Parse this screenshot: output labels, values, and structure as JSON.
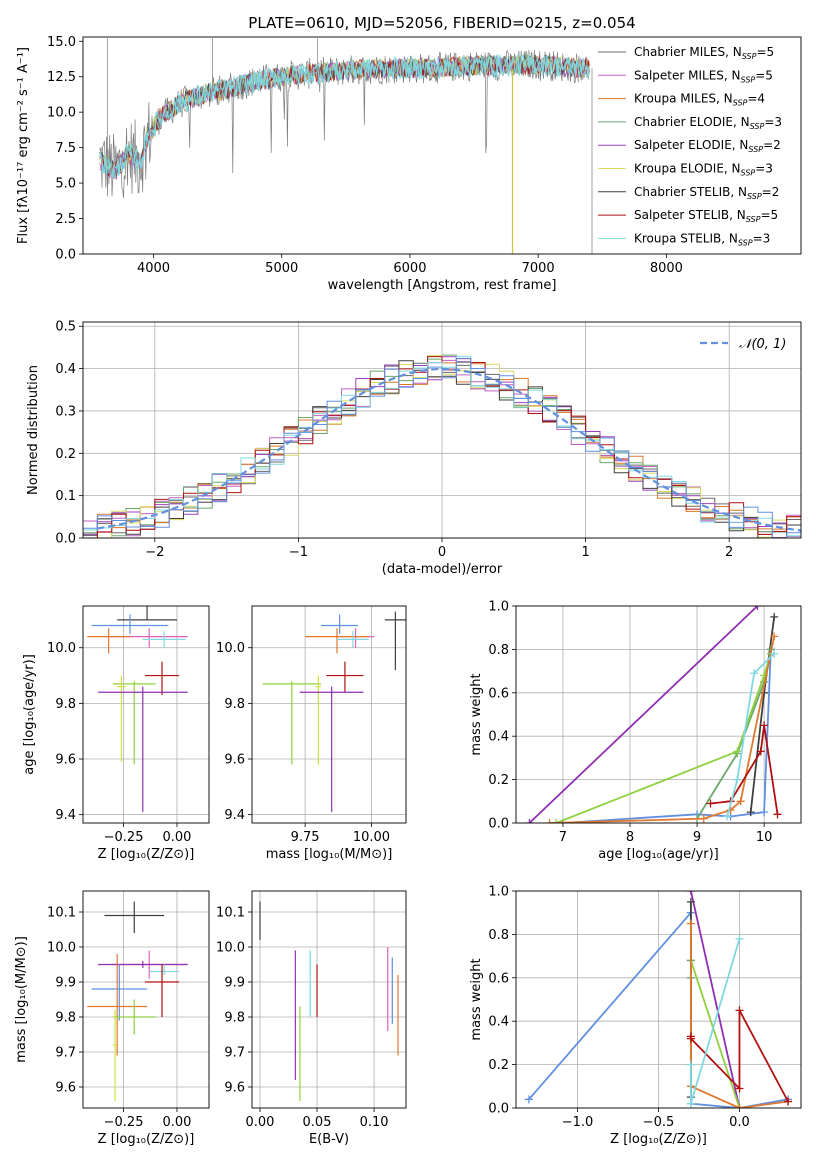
{
  "colors": {
    "grid": "#b0b0b0",
    "palette": [
      "#6a6a6a",
      "#c060c0",
      "#d97a2a",
      "#6aa86a",
      "#a040c0",
      "#d8d860",
      "#404040",
      "#b01010",
      "#80d8e0"
    ],
    "blue": "#6090e0",
    "orange": "#e07830",
    "green": "#90d040",
    "purple": "#9030b0",
    "dark": "#404040",
    "red": "#b01010",
    "cyan": "#80d8e0",
    "pink": "#e060c0",
    "yellow": "#d0e040"
  },
  "chart_data": [
    {
      "id": "spectrum",
      "type": "line",
      "title": "PLATE=0610, MJD=52056, FIBERID=0215, z=0.054",
      "xlabel": "wavelength [Angstrom, rest frame]",
      "ylabel": "Flux [fλ10⁻¹⁷ erg cm⁻² s⁻¹ A⁻¹]",
      "xlim": [
        3450,
        9050
      ],
      "ylim": [
        0,
        15.3
      ],
      "xticks": [
        4000,
        5000,
        6000,
        7000,
        8000
      ],
      "yticks": [
        0.0,
        2.5,
        5.0,
        7.5,
        10.0,
        12.5,
        15.0
      ],
      "xtick_labels": [
        "4000",
        "5000",
        "6000",
        "7000",
        "8000"
      ],
      "ytick_labels": [
        "0.0",
        "2.5",
        "5.0",
        "7.5",
        "10.0",
        "12.5",
        "15.0"
      ],
      "continuum": {
        "x": [
          3580,
          3700,
          3800,
          3900,
          3950,
          4050,
          4200,
          4400,
          4600,
          4800,
          5000,
          5300,
          5600,
          5900,
          6200,
          6500,
          6800,
          7000,
          7200,
          7400
        ],
        "y": [
          6.6,
          5.8,
          7.1,
          6.5,
          8.2,
          9.6,
          10.6,
          11.3,
          11.7,
          12.2,
          12.5,
          12.8,
          13.0,
          13.1,
          13.1,
          13.3,
          13.3,
          13.4,
          13.2,
          13.1
        ]
      },
      "legend": [
        {
          "label": "Chabrier MILES, N",
          "sub": "SSP",
          "tail": "=5",
          "color": "#6a6a6a"
        },
        {
          "label": "Salpeter MILES, N",
          "sub": "SSP",
          "tail": "=5",
          "color": "#c060c0"
        },
        {
          "label": "Kroupa MILES, N",
          "sub": "SSP",
          "tail": "=4",
          "color": "#d97a2a"
        },
        {
          "label": "Chabrier ELODIE, N",
          "sub": "SSP",
          "tail": "=3",
          "color": "#6aa86a"
        },
        {
          "label": "Salpeter ELODIE, N",
          "sub": "SSP",
          "tail": "=2",
          "color": "#a040c0"
        },
        {
          "label": "Kroupa ELODIE, N",
          "sub": "SSP",
          "tail": "=3",
          "color": "#d8d860"
        },
        {
          "label": "Chabrier STELIB, N",
          "sub": "SSP",
          "tail": "=2",
          "color": "#404040"
        },
        {
          "label": "Salpeter STELIB, N",
          "sub": "SSP",
          "tail": "=5",
          "color": "#b01010"
        },
        {
          "label": "Kroupa STELIB, N",
          "sub": "SSP",
          "tail": "=3",
          "color": "#80d8e0"
        }
      ]
    },
    {
      "id": "residuals",
      "type": "line",
      "xlabel": "(data-model)/error",
      "ylabel": "Normed distribution",
      "xlim": [
        -2.5,
        2.5
      ],
      "ylim": [
        0,
        0.51
      ],
      "xticks": [
        -2,
        -1,
        0,
        1,
        2
      ],
      "yticks": [
        0.0,
        0.1,
        0.2,
        0.3,
        0.4,
        0.5
      ],
      "xtick_labels": [
        "−2",
        "−1",
        "0",
        "1",
        "2"
      ],
      "ytick_labels": [
        "0.0",
        "0.1",
        "0.2",
        "0.3",
        "0.4",
        "0.5"
      ],
      "legend_label": "𝒩(0, 1)",
      "series_bin_width": 0.1
    },
    {
      "id": "age_vs_Z",
      "type": "scatter",
      "xlabel": "Z [log₁₀(Z/Z⊙)]",
      "ylabel": "age  [log₁₀(age/yr)]",
      "xlim": [
        -0.44,
        0.15
      ],
      "ylim": [
        9.37,
        10.15
      ],
      "xticks": [
        -0.25,
        0.0
      ],
      "yticks": [
        9.4,
        9.6,
        9.8,
        10.0
      ],
      "xtick_labels": [
        "−0.25",
        "0.00"
      ],
      "ytick_labels": [
        "9.4",
        "9.6",
        "9.8",
        "10.0"
      ],
      "points": [
        {
          "x": -0.14,
          "y": 10.1,
          "xerr": 0.14,
          "yerr": [
            0.0,
            0.05
          ],
          "color": "#404040"
        },
        {
          "x": -0.22,
          "y": 10.08,
          "xerr": 0.18,
          "yerr": [
            0.03,
            0.04
          ],
          "color": "#6090e0"
        },
        {
          "x": -0.13,
          "y": 10.04,
          "xerr": 0.18,
          "yerr": [
            0.04,
            0.03
          ],
          "color": "#e060c0"
        },
        {
          "x": -0.32,
          "y": 10.04,
          "xerr": 0.1,
          "yerr": [
            0.06,
            0.03
          ],
          "color": "#e07830"
        },
        {
          "x": -0.06,
          "y": 10.03,
          "xerr": 0.1,
          "yerr": [
            0.03,
            0.03
          ],
          "color": "#80d8e0"
        },
        {
          "x": -0.07,
          "y": 9.9,
          "xerr": 0.08,
          "yerr": [
            0.07,
            0.05
          ],
          "color": "#b01010"
        },
        {
          "x": -0.2,
          "y": 9.87,
          "xerr": 0.1,
          "yerr": [
            0.29,
            0.01
          ],
          "color": "#90d040"
        },
        {
          "x": -0.26,
          "y": 9.86,
          "xerr": 0.02,
          "yerr": [
            0.27,
            0.04
          ],
          "color": "#d0e040"
        },
        {
          "x": -0.16,
          "y": 9.84,
          "xerr": 0.21,
          "yerr": [
            0.43,
            0.02
          ],
          "color": "#9030b0"
        }
      ]
    },
    {
      "id": "age_vs_mass",
      "type": "scatter",
      "xlabel": "mass [log₁₀(M/M⊙)]",
      "xlim": [
        9.55,
        10.13
      ],
      "ylim": [
        9.37,
        10.15
      ],
      "xticks": [
        9.75,
        10.0
      ],
      "yticks": [
        9.4,
        9.6,
        9.8,
        10.0
      ],
      "xtick_labels": [
        "9.75",
        "10.00"
      ],
      "ytick_labels": [
        "9.4",
        "9.6",
        "9.8",
        "10.0"
      ],
      "points": [
        {
          "x": 10.09,
          "y": 10.1,
          "xerr": 0.04,
          "yerr": [
            0.18,
            0.03
          ],
          "color": "#404040"
        },
        {
          "x": 9.88,
          "y": 10.08,
          "xerr": 0.07,
          "yerr": [
            0.03,
            0.04
          ],
          "color": "#6090e0"
        },
        {
          "x": 9.94,
          "y": 10.04,
          "xerr": 0.07,
          "yerr": [
            0.04,
            0.03
          ],
          "color": "#e060c0"
        },
        {
          "x": 9.87,
          "y": 10.04,
          "xerr": 0.12,
          "yerr": [
            0.06,
            0.03
          ],
          "color": "#e07830"
        },
        {
          "x": 9.93,
          "y": 10.03,
          "xerr": 0.06,
          "yerr": [
            0.03,
            0.03
          ],
          "color": "#80d8e0"
        },
        {
          "x": 9.9,
          "y": 9.9,
          "xerr": 0.07,
          "yerr": [
            0.06,
            0.05
          ],
          "color": "#b01010"
        },
        {
          "x": 9.7,
          "y": 9.87,
          "xerr": 0.11,
          "yerr": [
            0.29,
            0.01
          ],
          "color": "#90d040"
        },
        {
          "x": 9.8,
          "y": 9.86,
          "xerr": 0.01,
          "yerr": [
            0.28,
            0.04
          ],
          "color": "#d0e040"
        },
        {
          "x": 9.85,
          "y": 9.84,
          "xerr": 0.12,
          "yerr": [
            0.43,
            0.02
          ],
          "color": "#9030b0"
        }
      ]
    },
    {
      "id": "massweight_vs_age",
      "type": "line",
      "xlabel": "age  [log₁₀(age/yr)]",
      "ylabel": "mass weight",
      "xlim": [
        6.3,
        10.55
      ],
      "ylim": [
        0,
        1.0
      ],
      "xticks": [
        7,
        8,
        9,
        10
      ],
      "yticks": [
        0.0,
        0.2,
        0.4,
        0.6,
        0.8,
        1.0
      ],
      "xtick_labels": [
        "7",
        "8",
        "9",
        "10"
      ],
      "ytick_labels": [
        "0.0",
        "0.2",
        "0.4",
        "0.6",
        "0.8",
        "1.0"
      ],
      "series": [
        {
          "color": "#9030b0",
          "x": [
            6.5,
            9.9
          ],
          "y": [
            0.0,
            1.0
          ]
        },
        {
          "color": "#6090e0",
          "x": [
            7.0,
            9.0,
            9.5,
            10.0,
            10.1
          ],
          "y": [
            0.0,
            0.04,
            0.03,
            0.05,
            0.8
          ]
        },
        {
          "color": "#404040",
          "x": [
            9.8,
            10.0,
            10.15
          ],
          "y": [
            0.05,
            0.6,
            0.95
          ]
        },
        {
          "color": "#6aa86a",
          "x": [
            9.0,
            9.6,
            10.0,
            10.1
          ],
          "y": [
            0.02,
            0.32,
            0.65,
            0.8
          ]
        },
        {
          "color": "#90d040",
          "x": [
            6.9,
            9.6,
            10.0,
            10.1
          ],
          "y": [
            0.0,
            0.33,
            0.68,
            0.78
          ]
        },
        {
          "color": "#e07830",
          "x": [
            6.8,
            9.1,
            9.5,
            9.65,
            10.15
          ],
          "y": [
            0.0,
            0.02,
            0.06,
            0.1,
            0.86
          ]
        },
        {
          "color": "#b01010",
          "x": [
            9.2,
            9.5,
            9.95,
            10.0,
            10.2
          ],
          "y": [
            0.09,
            0.1,
            0.33,
            0.45,
            0.04
          ]
        },
        {
          "color": "#80d8e0",
          "x": [
            9.45,
            9.6,
            9.85,
            10.15
          ],
          "y": [
            0.03,
            0.2,
            0.69,
            0.78
          ]
        }
      ]
    },
    {
      "id": "mass_vs_Z",
      "type": "scatter",
      "xlabel": "Z [log₁₀(Z/Z⊙)]",
      "ylabel": "mass [log₁₀(M/M⊙)]",
      "xlim": [
        -0.44,
        0.15
      ],
      "ylim": [
        9.54,
        10.16
      ],
      "xticks": [
        -0.25,
        0.0
      ],
      "yticks": [
        9.6,
        9.7,
        9.8,
        9.9,
        10.0,
        10.1
      ],
      "xtick_labels": [
        "−0.25",
        "0.00"
      ],
      "ytick_labels": [
        "9.6",
        "9.7",
        "9.8",
        "9.9",
        "10.0",
        "10.1"
      ],
      "points": [
        {
          "x": -0.2,
          "y": 10.09,
          "xerr": 0.14,
          "yerr": [
            0.05,
            0.04
          ],
          "color": "#404040"
        },
        {
          "x": -0.13,
          "y": 9.95,
          "xerr": 0.18,
          "yerr": [
            0.04,
            0.04
          ],
          "color": "#e060c0"
        },
        {
          "x": -0.16,
          "y": 9.95,
          "xerr": 0.21,
          "yerr": [
            0.01,
            0.01
          ],
          "color": "#9030b0"
        },
        {
          "x": -0.06,
          "y": 9.93,
          "xerr": 0.07,
          "yerr": [
            0.01,
            0.02
          ],
          "color": "#80d8e0"
        },
        {
          "x": -0.07,
          "y": 9.9,
          "xerr": 0.08,
          "yerr": [
            0.1,
            0.05
          ],
          "color": "#b01010"
        },
        {
          "x": -0.27,
          "y": 9.88,
          "xerr": 0.13,
          "yerr": [
            0.09,
            0.07
          ],
          "color": "#6090e0"
        },
        {
          "x": -0.28,
          "y": 9.83,
          "xerr": 0.14,
          "yerr": [
            0.14,
            0.15
          ],
          "color": "#e07830"
        },
        {
          "x": -0.2,
          "y": 9.8,
          "xerr": 0.1,
          "yerr": [
            0.05,
            0.05
          ],
          "color": "#90d040"
        },
        {
          "x": -0.29,
          "y": 9.72,
          "xerr": 0.01,
          "yerr": [
            0.16,
            0.1
          ],
          "color": "#d0e040"
        }
      ]
    },
    {
      "id": "mass_vs_ebv",
      "type": "scatter",
      "xlabel": "E(B-V)",
      "xlim": [
        -0.007,
        0.128
      ],
      "ylim": [
        9.54,
        10.16
      ],
      "xticks": [
        0.0,
        0.05,
        0.1
      ],
      "yticks": [
        9.6,
        9.7,
        9.8,
        9.9,
        10.0,
        10.1
      ],
      "xtick_labels": [
        "0.00",
        "0.05",
        "0.10"
      ],
      "ytick_labels": [
        "9.6",
        "9.7",
        "9.8",
        "9.9",
        "10.0",
        "10.1"
      ],
      "points": [
        {
          "x": 0.0,
          "y": 10.08,
          "xerr": 0,
          "yerr": [
            0.06,
            0.05
          ],
          "color": "#404040"
        },
        {
          "x": 0.031,
          "y": 9.82,
          "xerr": 0,
          "yerr": [
            0.2,
            0.17
          ],
          "color": "#9030b0"
        },
        {
          "x": 0.035,
          "y": 9.72,
          "xerr": 0,
          "yerr": [
            0.16,
            0.11
          ],
          "color": "#90d040"
        },
        {
          "x": 0.044,
          "y": 9.9,
          "xerr": 0,
          "yerr": [
            0.1,
            0.09
          ],
          "color": "#80d8e0"
        },
        {
          "x": 0.05,
          "y": 9.88,
          "xerr": 0,
          "yerr": [
            0.08,
            0.07
          ],
          "color": "#b01010"
        },
        {
          "x": 0.112,
          "y": 9.88,
          "xerr": 0,
          "yerr": [
            0.12,
            0.12
          ],
          "color": "#e060c0"
        },
        {
          "x": 0.116,
          "y": 9.87,
          "xerr": 0,
          "yerr": [
            0.09,
            0.1
          ],
          "color": "#6090e0"
        },
        {
          "x": 0.121,
          "y": 9.8,
          "xerr": 0,
          "yerr": [
            0.11,
            0.12
          ],
          "color": "#e07830"
        }
      ]
    },
    {
      "id": "massweight_vs_Z",
      "type": "line",
      "xlabel": "Z [log₁₀(Z/Z⊙)]",
      "ylabel": "mass weight",
      "xlim": [
        -1.38,
        0.38
      ],
      "ylim": [
        0,
        1.0
      ],
      "xticks": [
        -1.0,
        -0.5,
        0.0
      ],
      "yticks": [
        0.0,
        0.2,
        0.4,
        0.6,
        0.8,
        1.0
      ],
      "xtick_labels": [
        "−1.0",
        "−0.5",
        "0.0"
      ],
      "ytick_labels": [
        "0.0",
        "0.2",
        "0.4",
        "0.6",
        "0.8",
        "1.0"
      ],
      "series": [
        {
          "color": "#6090e0",
          "x": [
            -1.3,
            -0.3,
            -0.3,
            0.0,
            0.3
          ],
          "y": [
            0.04,
            0.9,
            0.02,
            0.0,
            0.04
          ]
        },
        {
          "color": "#9030b0",
          "x": [
            -0.3,
            0.0
          ],
          "y": [
            1.0,
            0.0
          ]
        },
        {
          "color": "#404040",
          "x": [
            -0.3,
            -0.3
          ],
          "y": [
            0.95,
            0.05
          ]
        },
        {
          "color": "#90d040",
          "x": [
            -0.3,
            0.0
          ],
          "y": [
            0.68,
            0.0
          ]
        },
        {
          "color": "#6aa86a",
          "x": [
            -0.3,
            -0.3
          ],
          "y": [
            0.68,
            0.6
          ]
        },
        {
          "color": "#e07830",
          "x": [
            -0.3,
            -0.3,
            0.0,
            0.3
          ],
          "y": [
            0.85,
            0.1,
            0.0,
            0.03
          ]
        },
        {
          "color": "#b01010",
          "x": [
            -0.3,
            -0.3,
            0.0,
            0.0,
            0.3
          ],
          "y": [
            0.33,
            0.32,
            0.09,
            0.45,
            0.03
          ]
        },
        {
          "color": "#80d8e0",
          "x": [
            -0.3,
            -0.3,
            0.0
          ],
          "y": [
            0.2,
            0.02,
            0.78
          ]
        }
      ]
    }
  ]
}
